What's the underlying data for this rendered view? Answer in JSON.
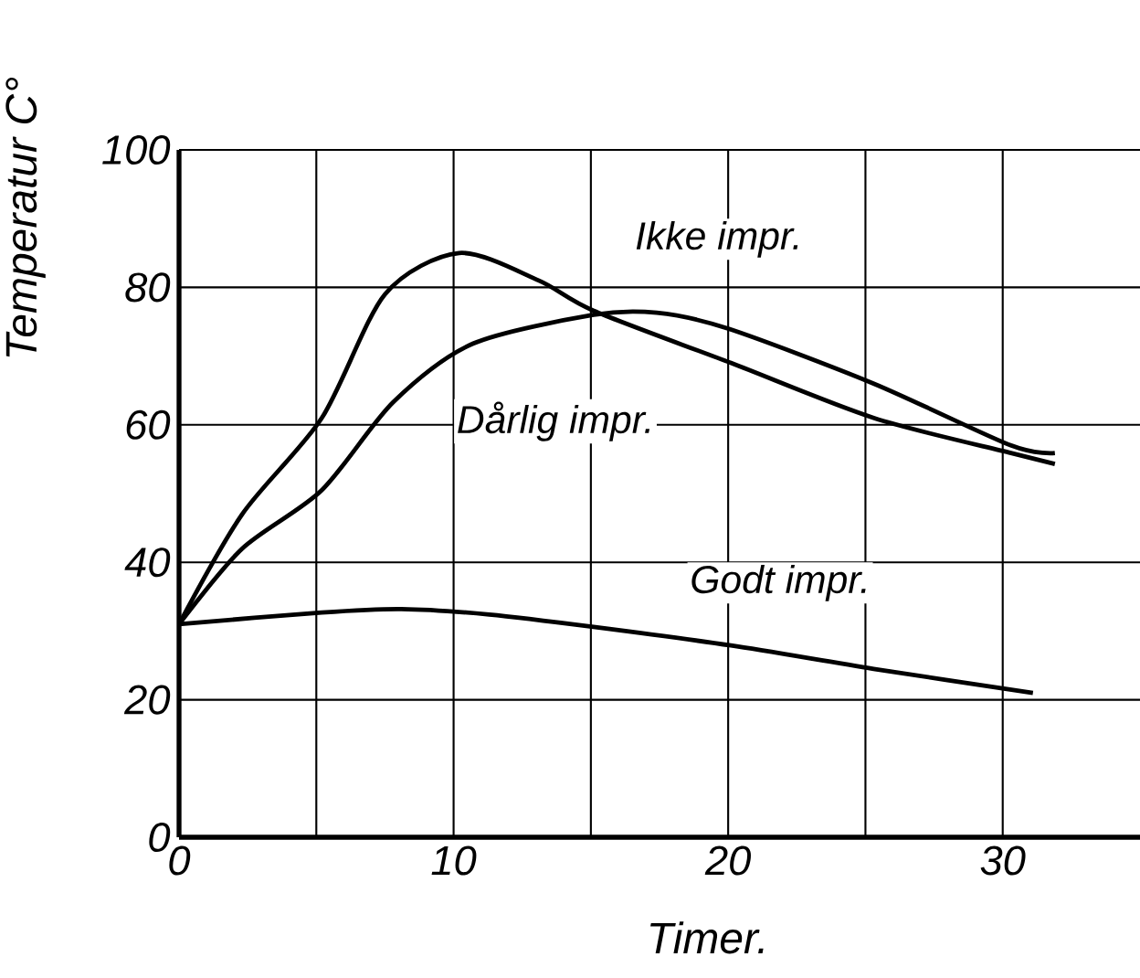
{
  "chart_data": {
    "type": "line",
    "xlabel": "Timer.",
    "ylabel": "Temperatur C°",
    "xlim": [
      0,
      35
    ],
    "ylim": [
      0,
      100
    ],
    "xticks": [
      0,
      {
        "value": 5,
        "label": null
      },
      10,
      {
        "value": 15,
        "label": null
      },
      20,
      {
        "value": 25,
        "label": null
      },
      30
    ],
    "yticks": [
      0,
      20,
      40,
      60,
      80,
      100
    ],
    "grid": true,
    "legend": false,
    "marker": "none",
    "line_style": "solid",
    "series": [
      {
        "name": "Ikke impr.",
        "color": "#000000",
        "x": [
          0,
          2.3,
          5.2,
          7.5,
          10.2,
          13.1,
          15.1,
          20.1,
          25.3,
          30.3,
          31.9
        ],
        "values": [
          31,
          47,
          61,
          79,
          85,
          81,
          76.6,
          69,
          61,
          55.9,
          54.3
        ]
      },
      {
        "name": "Dårlig impr.",
        "color": "#000000",
        "x": [
          0,
          2.3,
          5.2,
          7.8,
          10.7,
          15.1,
          17.4,
          20,
          25.3,
          30.3,
          31.9
        ],
        "values": [
          31,
          42,
          50.5,
          63.3,
          71.8,
          76,
          76.3,
          74,
          66,
          57,
          55.9
        ]
      },
      {
        "name": "Godt impr.",
        "color": "#000000",
        "x": [
          0,
          5.2,
          8.1,
          11.3,
          15.1,
          20.1,
          25.3,
          31.1
        ],
        "values": [
          31,
          32.7,
          33.2,
          32.4,
          30.6,
          27.9,
          24.5,
          21
        ]
      }
    ]
  }
}
